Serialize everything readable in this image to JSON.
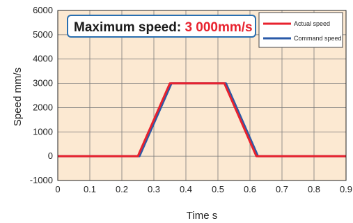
{
  "chart_data": {
    "type": "line",
    "annotation_label": "Maximum speed: ",
    "annotation_value": "3 000mm/s",
    "xlabel": "Time s",
    "ylabel": "Speed mm/s",
    "xlim": [
      0,
      0.9
    ],
    "ylim": [
      -1000,
      6000
    ],
    "x_ticks": [
      "0",
      "0.1",
      "0.2",
      "0.3",
      "0.4",
      "0.5",
      "0.6",
      "0.7",
      "0.8",
      "0.9"
    ],
    "y_ticks": [
      "-1000",
      "0",
      "1000",
      "2000",
      "3000",
      "4000",
      "5000",
      "6000"
    ],
    "grid": true,
    "legend_position": "top-right",
    "series": [
      {
        "name": "Command speed",
        "color": "#2a5aa8",
        "x": [
          0,
          0.255,
          0.355,
          0.525,
          0.625,
          0.9
        ],
        "y": [
          0,
          0,
          3000,
          3000,
          0,
          0
        ]
      },
      {
        "name": "Actual speed",
        "color": "#e8222e",
        "x": [
          0,
          0.25,
          0.35,
          0.52,
          0.62,
          0.9
        ],
        "y": [
          0,
          0,
          3000,
          3000,
          0,
          0
        ]
      }
    ],
    "colors": {
      "plot_bg": "#fce9d2",
      "grid": "#7a7a7a",
      "annotation_value": "#e8222e",
      "annotation_border": "#2a6fb0"
    }
  }
}
